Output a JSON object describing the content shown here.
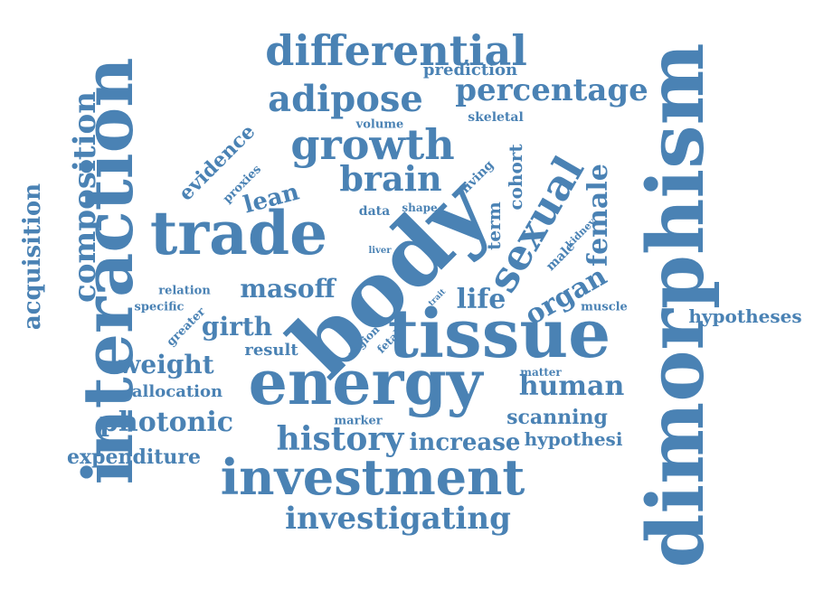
{
  "accent_color": "#4a82b4",
  "words": [
    {
      "key": "dimorphism",
      "text": "dimorphism"
    },
    {
      "key": "interaction",
      "text": "interaction"
    },
    {
      "key": "trade",
      "text": "trade"
    },
    {
      "key": "body",
      "text": "body"
    },
    {
      "key": "tissue",
      "text": "tissue"
    },
    {
      "key": "energy",
      "text": "energy"
    },
    {
      "key": "investment",
      "text": "investment"
    },
    {
      "key": "differential",
      "text": "differential"
    },
    {
      "key": "growth",
      "text": "growth"
    },
    {
      "key": "adipose",
      "text": "adipose"
    },
    {
      "key": "sexual",
      "text": "sexual"
    },
    {
      "key": "composition",
      "text": "composition"
    },
    {
      "key": "brain",
      "text": "brain"
    },
    {
      "key": "percentage",
      "text": "percentage"
    },
    {
      "key": "acquisition",
      "text": "acquisition"
    },
    {
      "key": "history",
      "text": "history"
    },
    {
      "key": "photonic",
      "text": "photonic"
    },
    {
      "key": "investigating",
      "text": "investigating"
    },
    {
      "key": "human",
      "text": "human"
    },
    {
      "key": "female",
      "text": "female"
    },
    {
      "key": "masoff",
      "text": "masoff"
    },
    {
      "key": "girth",
      "text": "girth"
    },
    {
      "key": "weight",
      "text": "weight"
    },
    {
      "key": "organ",
      "text": "organ"
    },
    {
      "key": "life",
      "text": "life"
    },
    {
      "key": "lean",
      "text": "lean"
    },
    {
      "key": "increase",
      "text": "increase"
    },
    {
      "key": "scanning",
      "text": "scanning"
    },
    {
      "key": "expenditure",
      "text": "expenditure"
    },
    {
      "key": "hypotheses",
      "text": "hypotheses"
    },
    {
      "key": "hypothesi",
      "text": "hypothesi"
    },
    {
      "key": "evidence",
      "text": "evidence"
    },
    {
      "key": "term",
      "text": "term"
    },
    {
      "key": "cohort",
      "text": "cohort"
    },
    {
      "key": "prediction",
      "text": "prediction"
    },
    {
      "key": "allocation",
      "text": "allocation"
    },
    {
      "key": "result",
      "text": "result"
    },
    {
      "key": "skeletal",
      "text": "skeletal"
    },
    {
      "key": "volume",
      "text": "volume"
    },
    {
      "key": "proxies",
      "text": "proxies"
    },
    {
      "key": "living",
      "text": "living"
    },
    {
      "key": "data",
      "text": "data"
    },
    {
      "key": "shape",
      "text": "shape"
    },
    {
      "key": "relation",
      "text": "relation"
    },
    {
      "key": "specific",
      "text": "specific"
    },
    {
      "key": "greater",
      "text": "greater"
    },
    {
      "key": "muscle",
      "text": "muscle"
    },
    {
      "key": "male",
      "text": "male"
    },
    {
      "key": "kidney",
      "text": "kidney"
    },
    {
      "key": "liver",
      "text": "liver"
    },
    {
      "key": "region",
      "text": "region"
    },
    {
      "key": "fetal",
      "text": "fetal"
    },
    {
      "key": "trait",
      "text": "trait"
    },
    {
      "key": "matter",
      "text": "matter"
    },
    {
      "key": "marker",
      "text": "marker"
    }
  ]
}
